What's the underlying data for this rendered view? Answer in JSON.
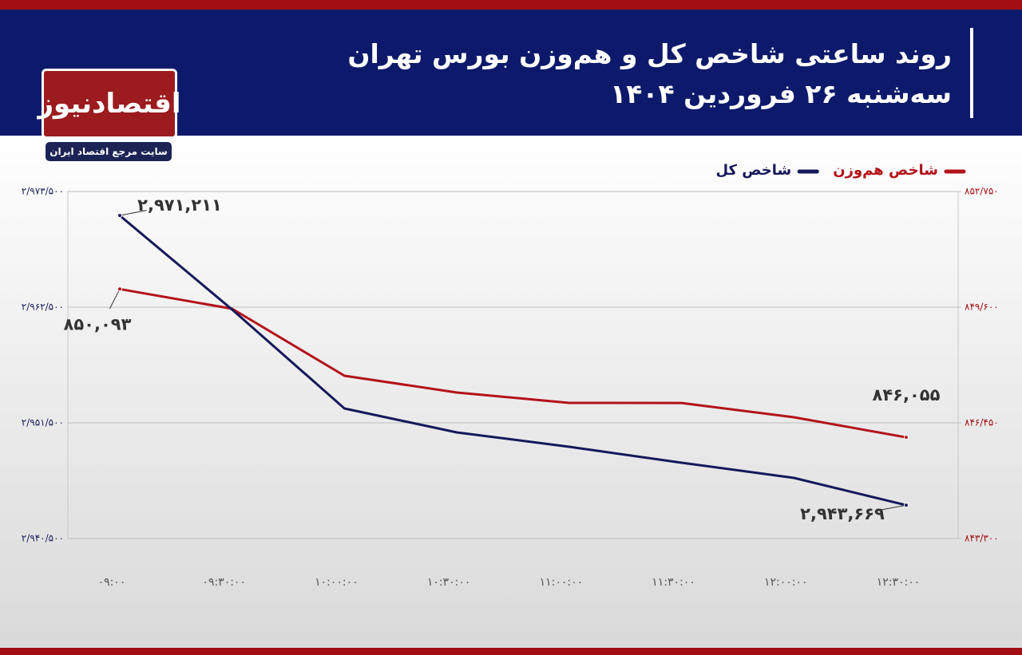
{
  "logo": {
    "name": "اقتصادنیوز",
    "tagline": "سایت مرجع اقتصاد ایران"
  },
  "chart_data": {
    "type": "line",
    "title": "روند ساعتی شاخص کل و هم‌وزن بورس تهران",
    "subtitle": "سه‌شنبه ۲۶ فروردین ۱۴۰۴",
    "categories": [
      "۰۹:۰۰",
      "۰۹:۳۰:۰۰",
      "۱۰:۰۰:۰۰",
      "۱۰:۳۰:۰۰",
      "۱۱:۰۰:۰۰",
      "۱۱:۳۰:۰۰",
      "۱۲:۰۰:۰۰",
      "۱۲:۳۰:۰۰"
    ],
    "series": [
      {
        "name": "شاخص هم‌وزن",
        "color": "#b3121a",
        "axis": "y2",
        "values": [
          850093,
          849557,
          847732,
          847276,
          846993,
          846990,
          846602,
          846055
        ],
        "value_labels": [
          "۸۵۰,۰۹۳",
          null,
          null,
          null,
          null,
          null,
          null,
          "۸۴۶,۰۵۵"
        ]
      },
      {
        "name": "شاخص کل",
        "color": "#15195a",
        "axis": "y",
        "values": [
          2971211,
          2962272,
          2952866,
          2950590,
          2949224,
          2947707,
          2946266,
          2943669
        ],
        "value_labels": [
          "۲,۹۷۱,۲۱۱",
          null,
          null,
          null,
          null,
          null,
          null,
          "۲,۹۴۳,۶۶۹"
        ]
      }
    ],
    "ylim": [
      2940500,
      2973500
    ],
    "yticks": [
      {
        "value": 2973500,
        "label": "۲/۹۷۳/۵۰۰"
      },
      {
        "value": 2962500,
        "label": "۲/۹۶۲/۵۰۰"
      },
      {
        "value": 2951500,
        "label": "۲/۹۵۱/۵۰۰"
      },
      {
        "value": 2940500,
        "label": "۲/۹۴۰/۵۰۰"
      }
    ],
    "y2lim": [
      843300,
      852750
    ],
    "y2ticks": [
      {
        "value": 852750,
        "label": "۸۵۲/۷۵۰"
      },
      {
        "value": 849600,
        "label": "۸۴۹/۶۰۰"
      },
      {
        "value": 846450,
        "label": "۸۴۶/۴۵۰"
      },
      {
        "value": 843300,
        "label": "۸۴۳/۳۰۰"
      }
    ],
    "grid": true
  }
}
